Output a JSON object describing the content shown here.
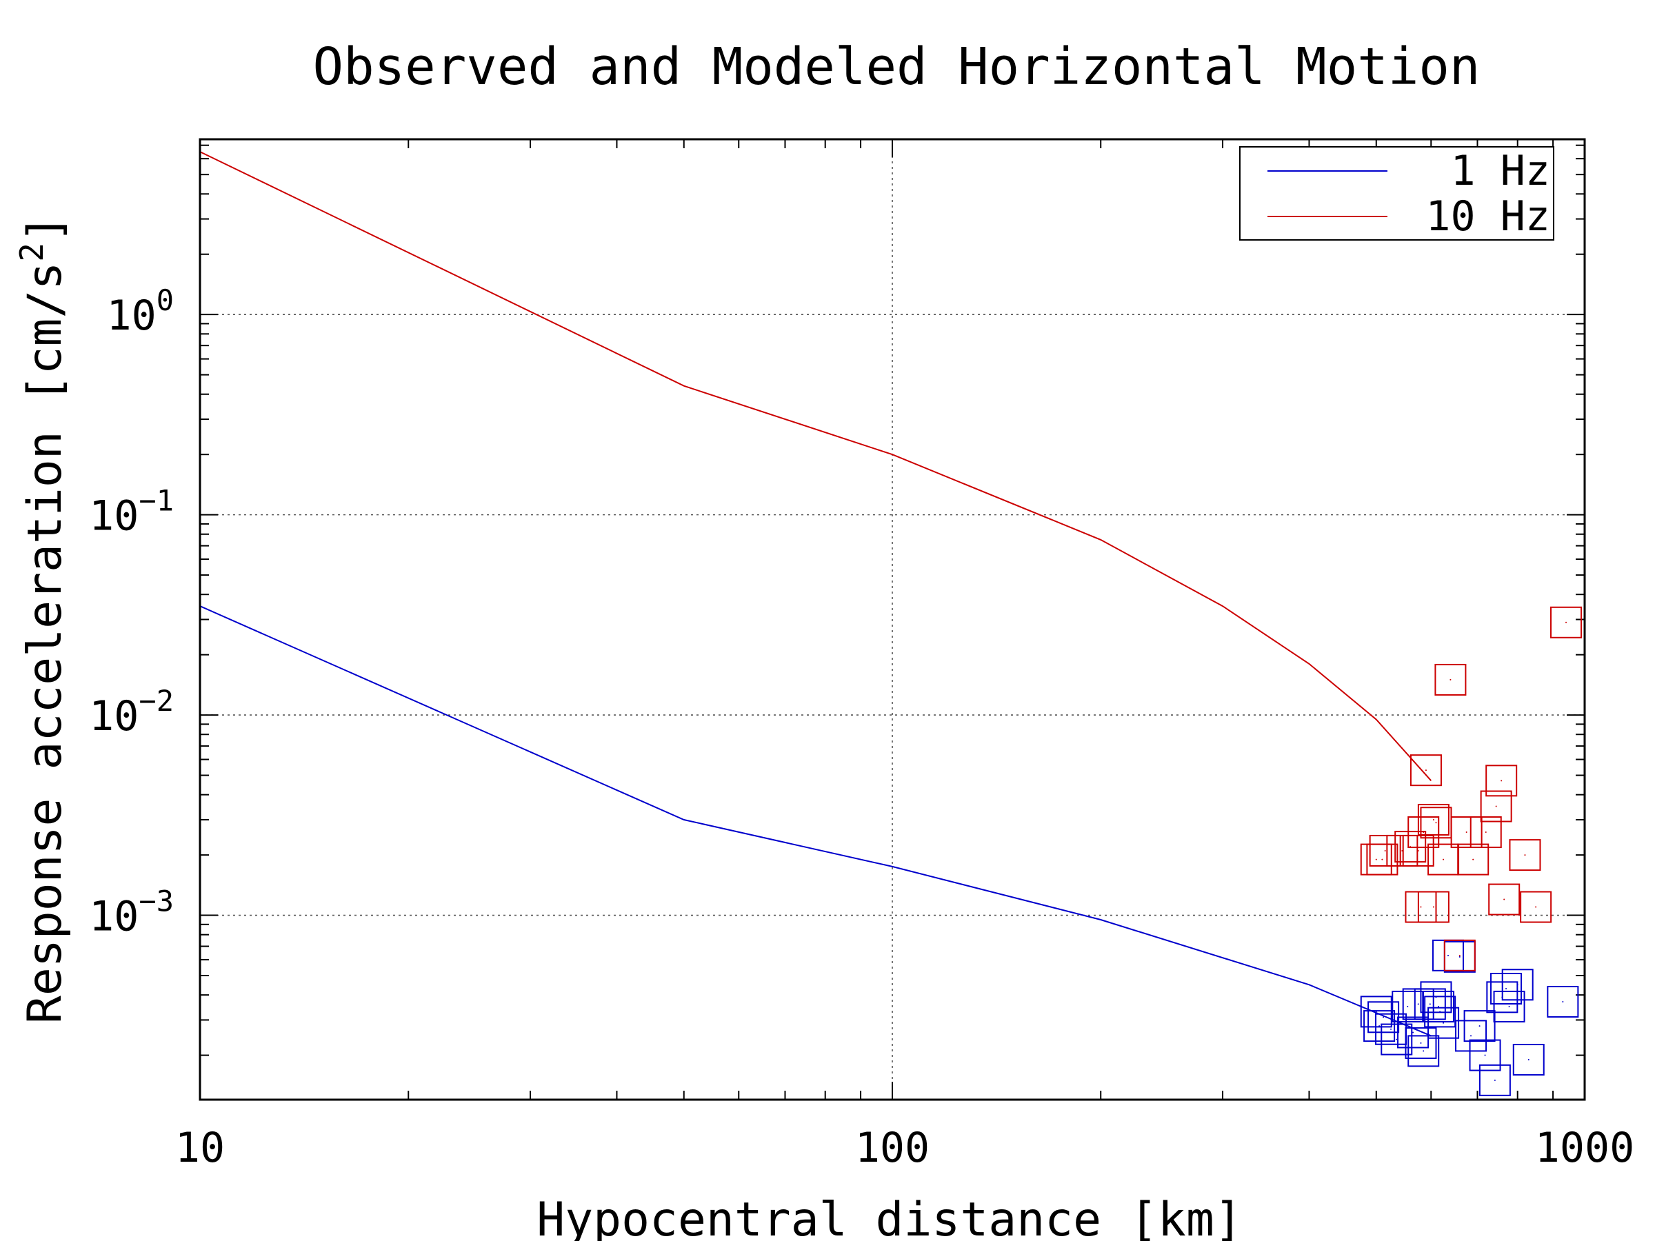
{
  "chart_data": {
    "type": "scatter",
    "title": "Observed and Modeled Horizontal Motion",
    "xlabel": "Hypocentral distance [km]",
    "ylabel_text": "Response acceleration [cm/s",
    "ylabel_superscript": "2",
    "ylabel_close": "]",
    "x_scale": "log",
    "y_scale": "log",
    "xlim": [
      10,
      1000
    ],
    "ylim": [
      0.00012,
      7.5
    ],
    "x_ticks": [
      {
        "value": 10,
        "label": "10"
      },
      {
        "value": 100,
        "label": "100"
      },
      {
        "value": 1000,
        "label": "1000"
      }
    ],
    "y_ticks": [
      {
        "value": 1,
        "base": "10",
        "exp": "0"
      },
      {
        "value": 0.1,
        "base": "10",
        "exp": "−1"
      },
      {
        "value": 0.01,
        "base": "10",
        "exp": "−2"
      },
      {
        "value": 0.001,
        "base": "10",
        "exp": "−3"
      }
    ],
    "grid": true,
    "legend_position": "top-right",
    "series": [
      {
        "name": "1 Hz",
        "color": "#0000cc",
        "line": [
          [
            10,
            0.035
          ],
          [
            50,
            0.003
          ],
          [
            100,
            0.00175
          ],
          [
            200,
            0.00095
          ],
          [
            400,
            0.00045
          ],
          [
            600,
            0.00025
          ]
        ],
        "observed": [
          [
            500,
            0.00033
          ],
          [
            505,
            0.00028
          ],
          [
            512,
            0.00031
          ],
          [
            525,
            0.00027
          ],
          [
            535,
            0.00024
          ],
          [
            555,
            0.00035
          ],
          [
            565,
            0.00026
          ],
          [
            575,
            0.00036
          ],
          [
            580,
            0.00023
          ],
          [
            585,
            0.00021
          ],
          [
            598,
            0.00036
          ],
          [
            610,
            0.00039
          ],
          [
            615,
            0.00035
          ],
          [
            618,
            0.00033
          ],
          [
            625,
            0.00029
          ],
          [
            635,
            0.00063
          ],
          [
            660,
            0.00062
          ],
          [
            685,
            0.00025
          ],
          [
            705,
            0.00028
          ],
          [
            718,
            0.0002
          ],
          [
            742,
            0.00015
          ],
          [
            760,
            0.00039
          ],
          [
            770,
            0.00043
          ],
          [
            778,
            0.00035
          ],
          [
            800,
            0.00045
          ],
          [
            830,
            0.00019
          ],
          [
            930,
            0.00037
          ]
        ]
      },
      {
        "name": "10 Hz",
        "color": "#cc0000",
        "line": [
          [
            10,
            6.5
          ],
          [
            50,
            0.44
          ],
          [
            100,
            0.2
          ],
          [
            200,
            0.075
          ],
          [
            300,
            0.035
          ],
          [
            400,
            0.018
          ],
          [
            500,
            0.0095
          ],
          [
            600,
            0.0047
          ]
        ],
        "observed": [
          [
            500,
            0.0019
          ],
          [
            510,
            0.0019
          ],
          [
            515,
            0.0021
          ],
          [
            545,
            0.0021
          ],
          [
            560,
            0.0022
          ],
          [
            575,
            0.0021
          ],
          [
            580,
            0.0011
          ],
          [
            585,
            0.0026
          ],
          [
            590,
            0.0053
          ],
          [
            605,
            0.0011
          ],
          [
            605,
            0.003
          ],
          [
            610,
            0.0029
          ],
          [
            625,
            0.0019
          ],
          [
            640,
            0.015
          ],
          [
            660,
            0.00063
          ],
          [
            675,
            0.0026
          ],
          [
            690,
            0.0019
          ],
          [
            720,
            0.0026
          ],
          [
            745,
            0.0035
          ],
          [
            758,
            0.0047
          ],
          [
            765,
            0.0012
          ],
          [
            820,
            0.002
          ],
          [
            850,
            0.0011
          ],
          [
            940,
            0.029
          ]
        ]
      }
    ]
  }
}
